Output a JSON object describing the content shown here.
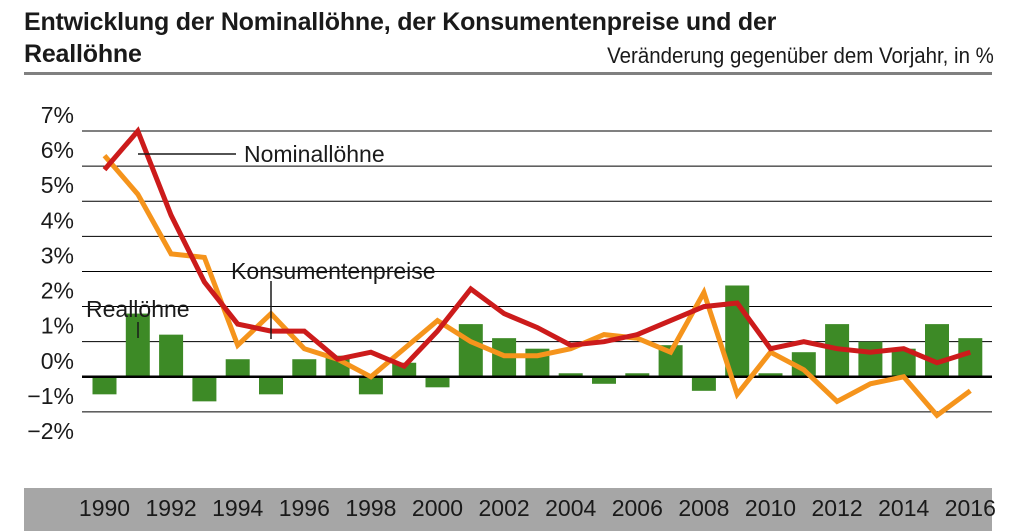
{
  "title": "Entwicklung der Nominallöhne, der Konsumentenpreise und der Reallöhne",
  "subtitle": "Veränderung gegenüber dem Vorjahr, in %",
  "colors": {
    "nominal": "#cc1b1b",
    "consumer": "#f5941c",
    "real": "#3d8a26",
    "xband": "#a6a6a6",
    "grid": "#000000"
  },
  "chart_data": {
    "type": "bar+line",
    "x": [
      1990,
      1991,
      1992,
      1993,
      1994,
      1995,
      1996,
      1997,
      1998,
      1999,
      2000,
      2001,
      2002,
      2003,
      2004,
      2005,
      2006,
      2007,
      2008,
      2009,
      2010,
      2011,
      2012,
      2013,
      2014,
      2015,
      2016
    ],
    "x_tick_labels": [
      "1990",
      "1992",
      "1994",
      "1996",
      "1998",
      "2000",
      "2002",
      "2004",
      "2006",
      "2008",
      "2010",
      "2012",
      "2014",
      "2016"
    ],
    "y_tick_labels": [
      "7%",
      "6%",
      "5%",
      "4%",
      "3%",
      "2%",
      "1%",
      "0%",
      "−1%",
      "−2%"
    ],
    "ylim": [
      -2,
      7
    ],
    "grid": true,
    "series": [
      {
        "name": "Reallöhne",
        "kind": "bar",
        "values": [
          -0.5,
          1.8,
          1.2,
          -0.7,
          0.5,
          -0.5,
          0.5,
          0.6,
          -0.5,
          0.4,
          -0.3,
          1.5,
          1.1,
          0.8,
          0.1,
          -0.2,
          0.1,
          0.9,
          -0.4,
          2.6,
          0.1,
          0.7,
          1.5,
          1.0,
          0.8,
          1.5,
          1.1
        ]
      },
      {
        "name": "Nominallöhne",
        "kind": "line",
        "values": [
          5.9,
          7.0,
          4.6,
          2.7,
          1.5,
          1.3,
          1.3,
          0.5,
          0.7,
          0.3,
          1.3,
          2.5,
          1.8,
          1.4,
          0.9,
          1.0,
          1.2,
          1.6,
          2.0,
          2.1,
          0.8,
          1.0,
          0.8,
          0.7,
          0.8,
          0.4,
          0.7
        ]
      },
      {
        "name": "Konsumentenpreise",
        "kind": "line",
        "values": [
          6.3,
          5.2,
          3.5,
          3.4,
          0.9,
          1.8,
          0.8,
          0.5,
          0.0,
          0.8,
          1.6,
          1.0,
          0.6,
          0.6,
          0.8,
          1.2,
          1.1,
          0.7,
          2.4,
          -0.5,
          0.7,
          0.2,
          -0.7,
          -0.2,
          0.0,
          -1.1,
          -0.4
        ]
      }
    ],
    "annotations": [
      "Nominallöhne",
      "Konsumentenpreise",
      "Reallöhne"
    ]
  }
}
